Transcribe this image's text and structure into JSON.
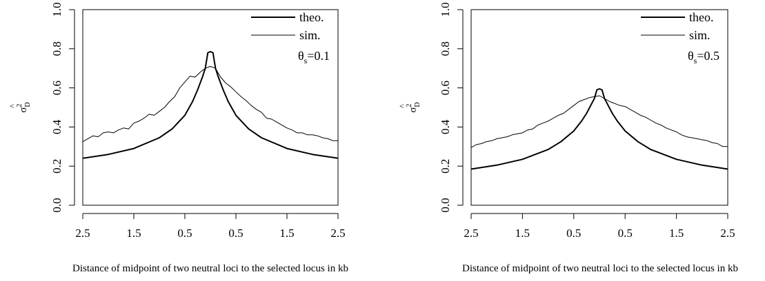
{
  "chart_data": [
    {
      "type": "line",
      "xlabel": "Distance of midpoint of two neutral loci to the selected locus in kb",
      "ylabel": "σ̂²_D",
      "ylabel_main": "σ",
      "ylabel_sup": "2",
      "ylabel_sub": "D",
      "ylabel_hat": "^",
      "x_tick_labels": [
        "2.5",
        "1.5",
        "0.5",
        "0.5",
        "1.5",
        "2.5"
      ],
      "x_ticks": [
        -2.5,
        -1.5,
        -0.5,
        0.5,
        1.5,
        2.5
      ],
      "xlim": [
        -2.5,
        2.5
      ],
      "ylim": [
        0.0,
        1.0
      ],
      "y_ticks": [
        0.0,
        0.2,
        0.4,
        0.6,
        0.8,
        1.0
      ],
      "y_tick_labels": [
        "0.0",
        "0.2",
        "0.4",
        "0.6",
        "0.8",
        "1.0"
      ],
      "grid": false,
      "legend_position": "top-right",
      "legend": {
        "theo": "theo.",
        "sim": "sim.",
        "theta_main": "θ",
        "theta_sub": "s",
        "theta_value": "=0.1"
      },
      "series": [
        {
          "name": "theo.",
          "x": [
            -2.5,
            -2.0,
            -1.5,
            -1.0,
            -0.75,
            -0.5,
            -0.35,
            -0.25,
            -0.15,
            -0.1,
            -0.05,
            0.0,
            0.05,
            0.1,
            0.15,
            0.25,
            0.35,
            0.5,
            0.75,
            1.0,
            1.5,
            2.0,
            2.5
          ],
          "y": [
            0.24,
            0.26,
            0.29,
            0.345,
            0.39,
            0.46,
            0.53,
            0.59,
            0.66,
            0.7,
            0.78,
            0.785,
            0.78,
            0.7,
            0.66,
            0.59,
            0.53,
            0.46,
            0.39,
            0.345,
            0.29,
            0.26,
            0.24
          ]
        },
        {
          "name": "sim.",
          "x": [
            -2.5,
            -2.4,
            -2.3,
            -2.2,
            -2.1,
            -2.0,
            -1.9,
            -1.8,
            -1.7,
            -1.6,
            -1.5,
            -1.4,
            -1.3,
            -1.2,
            -1.1,
            -1.0,
            -0.9,
            -0.8,
            -0.7,
            -0.6,
            -0.5,
            -0.4,
            -0.3,
            -0.2,
            -0.1,
            0.0,
            0.1,
            0.2,
            0.3,
            0.4,
            0.5,
            0.6,
            0.7,
            0.8,
            0.9,
            1.0,
            1.1,
            1.2,
            1.3,
            1.4,
            1.5,
            1.6,
            1.7,
            1.8,
            1.9,
            2.0,
            2.1,
            2.2,
            2.3,
            2.4,
            2.5
          ],
          "y": [
            0.325,
            0.34,
            0.355,
            0.35,
            0.37,
            0.375,
            0.37,
            0.385,
            0.395,
            0.39,
            0.42,
            0.43,
            0.445,
            0.465,
            0.46,
            0.48,
            0.5,
            0.53,
            0.555,
            0.6,
            0.63,
            0.66,
            0.655,
            0.68,
            0.7,
            0.71,
            0.7,
            0.655,
            0.625,
            0.605,
            0.58,
            0.555,
            0.535,
            0.51,
            0.49,
            0.475,
            0.445,
            0.44,
            0.425,
            0.41,
            0.395,
            0.385,
            0.37,
            0.37,
            0.36,
            0.36,
            0.355,
            0.345,
            0.34,
            0.33,
            0.33
          ]
        }
      ]
    },
    {
      "type": "line",
      "xlabel": "Distance of midpoint of two neutral loci to the selected locus in kb",
      "ylabel": "σ̂²_D",
      "ylabel_main": "σ",
      "ylabel_sup": "2",
      "ylabel_sub": "D",
      "ylabel_hat": "^",
      "x_tick_labels": [
        "2.5",
        "1.5",
        "0.5",
        "0.5",
        "1.5",
        "2.5"
      ],
      "x_ticks": [
        -2.5,
        -1.5,
        -0.5,
        0.5,
        1.5,
        2.5
      ],
      "xlim": [
        -2.5,
        2.5
      ],
      "ylim": [
        0.0,
        1.0
      ],
      "y_ticks": [
        0.0,
        0.2,
        0.4,
        0.6,
        0.8,
        1.0
      ],
      "y_tick_labels": [
        "0.0",
        "0.2",
        "0.4",
        "0.6",
        "0.8",
        "1.0"
      ],
      "grid": false,
      "legend_position": "top-right",
      "legend": {
        "theo": "theo.",
        "sim": "sim.",
        "theta_main": "θ",
        "theta_sub": "s",
        "theta_value": "=0.5"
      },
      "series": [
        {
          "name": "theo.",
          "x": [
            -2.5,
            -2.0,
            -1.5,
            -1.0,
            -0.75,
            -0.5,
            -0.35,
            -0.25,
            -0.15,
            -0.1,
            -0.05,
            0.0,
            0.05,
            0.1,
            0.15,
            0.25,
            0.35,
            0.5,
            0.75,
            1.0,
            1.5,
            2.0,
            2.5
          ],
          "y": [
            0.185,
            0.205,
            0.235,
            0.285,
            0.325,
            0.38,
            0.43,
            0.47,
            0.52,
            0.545,
            0.59,
            0.595,
            0.59,
            0.545,
            0.52,
            0.47,
            0.43,
            0.38,
            0.325,
            0.285,
            0.235,
            0.205,
            0.185
          ]
        },
        {
          "name": "sim.",
          "x": [
            -2.5,
            -2.4,
            -2.3,
            -2.2,
            -2.1,
            -2.0,
            -1.9,
            -1.8,
            -1.7,
            -1.6,
            -1.5,
            -1.4,
            -1.3,
            -1.2,
            -1.1,
            -1.0,
            -0.9,
            -0.8,
            -0.7,
            -0.6,
            -0.5,
            -0.4,
            -0.3,
            -0.2,
            -0.1,
            0.0,
            0.1,
            0.2,
            0.3,
            0.4,
            0.5,
            0.6,
            0.7,
            0.8,
            0.9,
            1.0,
            1.1,
            1.2,
            1.3,
            1.4,
            1.5,
            1.6,
            1.7,
            1.8,
            1.9,
            2.0,
            2.1,
            2.2,
            2.3,
            2.4,
            2.5
          ],
          "y": [
            0.295,
            0.31,
            0.315,
            0.325,
            0.33,
            0.34,
            0.345,
            0.35,
            0.36,
            0.365,
            0.37,
            0.385,
            0.39,
            0.41,
            0.42,
            0.43,
            0.445,
            0.46,
            0.47,
            0.49,
            0.51,
            0.53,
            0.54,
            0.55,
            0.555,
            0.56,
            0.545,
            0.53,
            0.52,
            0.51,
            0.505,
            0.49,
            0.475,
            0.46,
            0.45,
            0.435,
            0.42,
            0.41,
            0.395,
            0.385,
            0.375,
            0.36,
            0.35,
            0.345,
            0.34,
            0.335,
            0.33,
            0.32,
            0.315,
            0.3,
            0.3
          ]
        }
      ]
    }
  ]
}
